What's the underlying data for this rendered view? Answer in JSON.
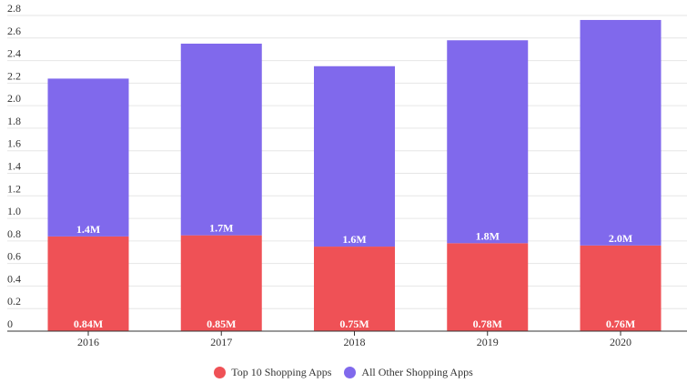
{
  "chart_data": {
    "type": "bar",
    "stacked": true,
    "categories": [
      "2016",
      "2017",
      "2018",
      "2019",
      "2020"
    ],
    "series": [
      {
        "name": "Top 10 Shopping Apps",
        "color": "#EF5156",
        "values": [
          0.84,
          0.85,
          0.75,
          0.78,
          0.76
        ],
        "labels": [
          "0.84M",
          "0.85M",
          "0.75M",
          "0.78M",
          "0.76M"
        ]
      },
      {
        "name": "All Other Shopping Apps",
        "color": "#8069EC",
        "values": [
          1.4,
          1.7,
          1.6,
          1.8,
          2.0
        ],
        "labels": [
          "1.4M",
          "1.7M",
          "1.6M",
          "1.8M",
          "2.0M"
        ]
      }
    ],
    "yticks": [
      "0",
      "0.2",
      "0.4",
      "0.6",
      "0.8",
      "1.0",
      "1.2",
      "1.4",
      "1.6",
      "1.8",
      "2.0",
      "2.2",
      "2.4",
      "2.6",
      "2.8"
    ],
    "ylim": [
      0,
      2.8
    ],
    "grid": true,
    "legend_position": "bottom-center"
  }
}
